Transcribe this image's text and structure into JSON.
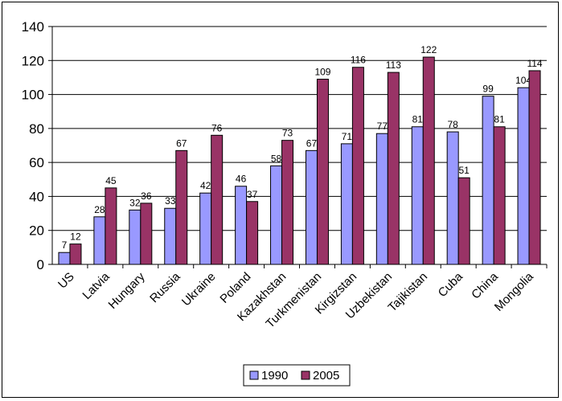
{
  "chart_data": {
    "type": "bar",
    "categories": [
      "US",
      "Latvia",
      "Hungary",
      "Russia",
      "Ukraine",
      "Poland",
      "Kazakhstan",
      "Turkmenistan",
      "Kirgizstan",
      "Uzbekistan",
      "Tajikistan",
      "Cuba",
      "China",
      "Mongolia"
    ],
    "series": [
      {
        "name": "1990",
        "color": "#9999ff",
        "values": [
          7,
          28,
          32,
          33,
          42,
          46,
          58,
          67,
          71,
          77,
          81,
          78,
          99,
          104
        ]
      },
      {
        "name": "2005",
        "color": "#993366",
        "values": [
          12,
          45,
          36,
          67,
          76,
          37,
          73,
          109,
          116,
          113,
          122,
          51,
          81,
          114
        ]
      }
    ],
    "ylim": [
      0,
      140
    ],
    "yticks": [
      0,
      20,
      40,
      60,
      80,
      100,
      120,
      140
    ],
    "grid": true,
    "legend": "bottom",
    "title": "",
    "xlabel": "",
    "ylabel": ""
  }
}
